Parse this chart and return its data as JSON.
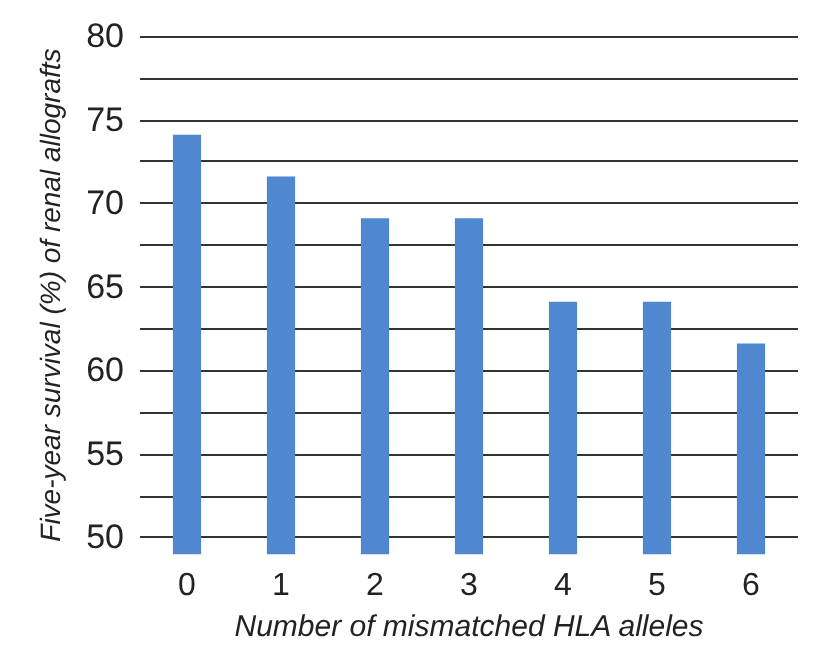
{
  "chart_data": {
    "type": "bar",
    "xlabel": "Number of mismatched HLA alleles",
    "ylabel": "Five-year survival (%) of renal allografts",
    "categories": [
      "0",
      "1",
      "2",
      "3",
      "4",
      "5",
      "6"
    ],
    "values": [
      74.1,
      71.6,
      69.1,
      69.1,
      64.1,
      64.1,
      61.6
    ],
    "color": "#4f87d0",
    "ylim": [
      49,
      80
    ],
    "yticks": [
      50,
      {
        "value": 52.5,
        "label": null
      },
      55,
      {
        "value": 57.5,
        "label": null
      },
      60,
      {
        "value": 62.5,
        "label": null
      },
      65,
      {
        "value": 67.5,
        "label": null
      },
      70,
      {
        "value": 72.5,
        "label": null
      },
      75,
      {
        "value": 77.5,
        "label": null
      },
      80
    ],
    "grid": "y"
  }
}
